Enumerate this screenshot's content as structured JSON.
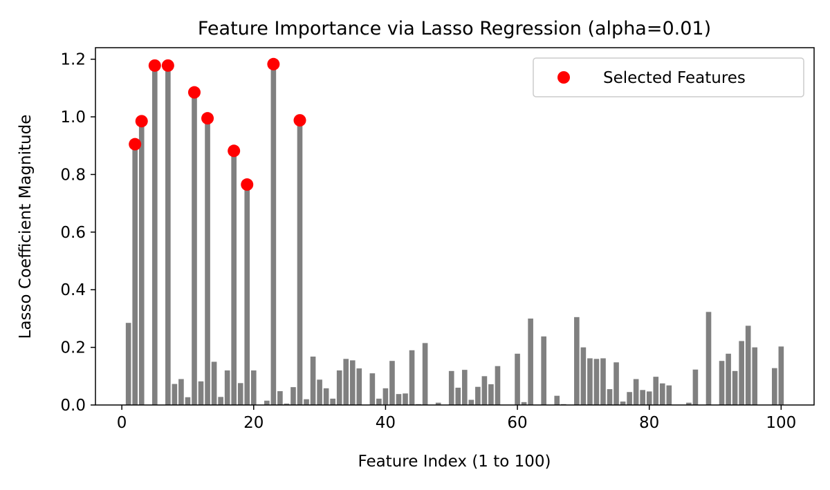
{
  "chart_data": {
    "type": "bar",
    "title": "Feature Importance via Lasso Regression (alpha=0.01)",
    "xlabel": "Feature Index (1 to 100)",
    "ylabel": "Lasso Coefficient Magnitude",
    "xlim": [
      -4,
      105
    ],
    "ylim": [
      0,
      1.24
    ],
    "xticks": [
      0,
      20,
      40,
      60,
      80,
      100
    ],
    "yticks": [
      0.0,
      0.2,
      0.4,
      0.6,
      0.8,
      1.0,
      1.2
    ],
    "xtick_labels": [
      "0",
      "20",
      "40",
      "60",
      "80",
      "100"
    ],
    "ytick_labels": [
      "0.0",
      "0.2",
      "0.4",
      "0.6",
      "0.8",
      "1.0",
      "1.2"
    ],
    "grid": false,
    "legend_position": "top-right",
    "x": [
      1,
      2,
      3,
      4,
      5,
      6,
      7,
      8,
      9,
      10,
      11,
      12,
      13,
      14,
      15,
      16,
      17,
      18,
      19,
      20,
      21,
      22,
      23,
      24,
      25,
      26,
      27,
      28,
      29,
      30,
      31,
      32,
      33,
      34,
      35,
      36,
      37,
      38,
      39,
      40,
      41,
      42,
      43,
      44,
      45,
      46,
      47,
      48,
      49,
      50,
      51,
      52,
      53,
      54,
      55,
      56,
      57,
      58,
      59,
      60,
      61,
      62,
      63,
      64,
      65,
      66,
      67,
      68,
      69,
      70,
      71,
      72,
      73,
      74,
      75,
      76,
      77,
      78,
      79,
      80,
      81,
      82,
      83,
      84,
      85,
      86,
      87,
      88,
      89,
      90,
      91,
      92,
      93,
      94,
      95,
      96,
      97,
      98,
      99,
      100
    ],
    "values": [
      0.285,
      0.905,
      0.985,
      0.0,
      1.178,
      0.0,
      1.178,
      0.073,
      0.09,
      0.027,
      1.085,
      0.082,
      0.995,
      0.15,
      0.028,
      0.12,
      0.882,
      0.076,
      0.765,
      0.12,
      0.0,
      0.015,
      1.183,
      0.048,
      0.005,
      0.062,
      0.988,
      0.02,
      0.168,
      0.088,
      0.058,
      0.022,
      0.12,
      0.16,
      0.155,
      0.127,
      0.0,
      0.11,
      0.022,
      0.058,
      0.153,
      0.038,
      0.04,
      0.19,
      0.003,
      0.215,
      0.0,
      0.008,
      0.0,
      0.118,
      0.06,
      0.122,
      0.018,
      0.063,
      0.1,
      0.072,
      0.135,
      0.0,
      0.0,
      0.178,
      0.01,
      0.3,
      0.0,
      0.238,
      0.0,
      0.032,
      0.003,
      0.0,
      0.305,
      0.2,
      0.162,
      0.16,
      0.162,
      0.055,
      0.148,
      0.012,
      0.045,
      0.09,
      0.052,
      0.047,
      0.098,
      0.075,
      0.068,
      0.0,
      0.0,
      0.008,
      0.123,
      0.0,
      0.323,
      0.0,
      0.153,
      0.178,
      0.118,
      0.222,
      0.275,
      0.2,
      0.0,
      0.0,
      0.128,
      0.203
    ],
    "bar_color": "#808080",
    "series": [
      {
        "name": "Selected Features",
        "type": "scatter",
        "color": "#ff0000",
        "x": [
          2,
          3,
          5,
          7,
          11,
          13,
          17,
          19,
          23,
          27
        ],
        "y": [
          0.905,
          0.985,
          1.178,
          1.178,
          1.085,
          0.995,
          0.882,
          0.765,
          1.183,
          0.988
        ]
      }
    ]
  }
}
